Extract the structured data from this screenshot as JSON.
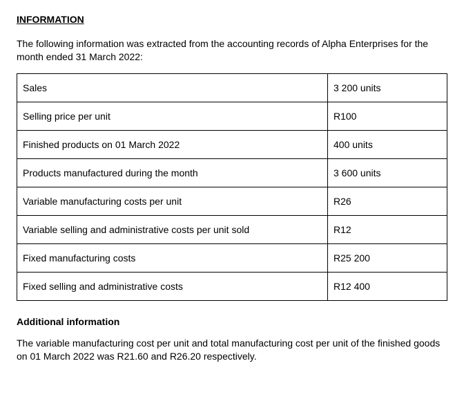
{
  "heading": "INFORMATION",
  "intro": "The following information was extracted from the accounting records of Alpha Enterprises for the month ended 31 March 2022:",
  "rows": [
    {
      "label": "Sales",
      "value": "3 200 units"
    },
    {
      "label": "Selling price per unit",
      "value": "R100"
    },
    {
      "label": "Finished products on 01 March 2022",
      "value": "400 units"
    },
    {
      "label": "Products manufactured during the month",
      "value": "3 600 units"
    },
    {
      "label": "Variable manufacturing costs per unit",
      "value": "R26"
    },
    {
      "label": "Variable selling and administrative costs per unit sold",
      "value": "R12"
    },
    {
      "label": "Fixed manufacturing costs",
      "value": "R25 200"
    },
    {
      "label": "Fixed selling and administrative costs",
      "value": "R12 400"
    }
  ],
  "subheading": "Additional information",
  "footnote": "The variable manufacturing cost per unit and total manufacturing cost per unit of the finished goods on 01 March 2022 was R21.60 and R26.20 respectively."
}
